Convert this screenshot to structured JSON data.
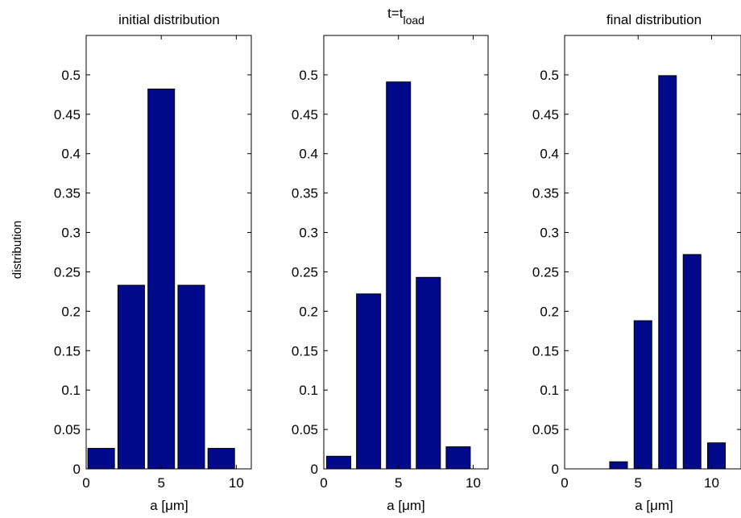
{
  "figure": {
    "ylabel": "distribution"
  },
  "chart_data": [
    {
      "type": "bar",
      "title": "initial distribution",
      "xlabel": "a [μm]",
      "ylabel": "distribution",
      "x": [
        1,
        3,
        5,
        7,
        9
      ],
      "values": [
        0.026,
        0.233,
        0.482,
        0.233,
        0.026
      ],
      "xlim": [
        0,
        11
      ],
      "ylim": [
        0,
        0.55
      ],
      "xticks": [
        0,
        5,
        10
      ],
      "yticks": [
        0,
        0.05,
        0.1,
        0.15,
        0.2,
        0.25,
        0.3,
        0.35,
        0.4,
        0.45,
        0.5
      ],
      "bar_color": "#000a8a"
    },
    {
      "type": "bar",
      "title_main": "t=t",
      "title_sub": "load",
      "xlabel": "a [μm]",
      "x": [
        1,
        3,
        5,
        7,
        9
      ],
      "values": [
        0.016,
        0.222,
        0.491,
        0.243,
        0.028
      ],
      "xlim": [
        0,
        11
      ],
      "ylim": [
        0,
        0.55
      ],
      "xticks": [
        0,
        5,
        10
      ],
      "yticks": [
        0,
        0.05,
        0.1,
        0.15,
        0.2,
        0.25,
        0.3,
        0.35,
        0.4,
        0.45,
        0.5
      ],
      "bar_color": "#000a8a"
    },
    {
      "type": "bar",
      "title": "final distribution",
      "xlabel": "a [μm]",
      "x": [
        3.67,
        5.33,
        7.0,
        8.67,
        10.33
      ],
      "values": [
        0.009,
        0.188,
        0.499,
        0.272,
        0.033
      ],
      "xlim": [
        0,
        12
      ],
      "ylim": [
        0,
        0.55
      ],
      "xticks": [
        0,
        5,
        10
      ],
      "yticks": [
        0,
        0.05,
        0.1,
        0.15,
        0.2,
        0.25,
        0.3,
        0.35,
        0.4,
        0.45,
        0.5
      ],
      "bar_color": "#000a8a"
    }
  ]
}
